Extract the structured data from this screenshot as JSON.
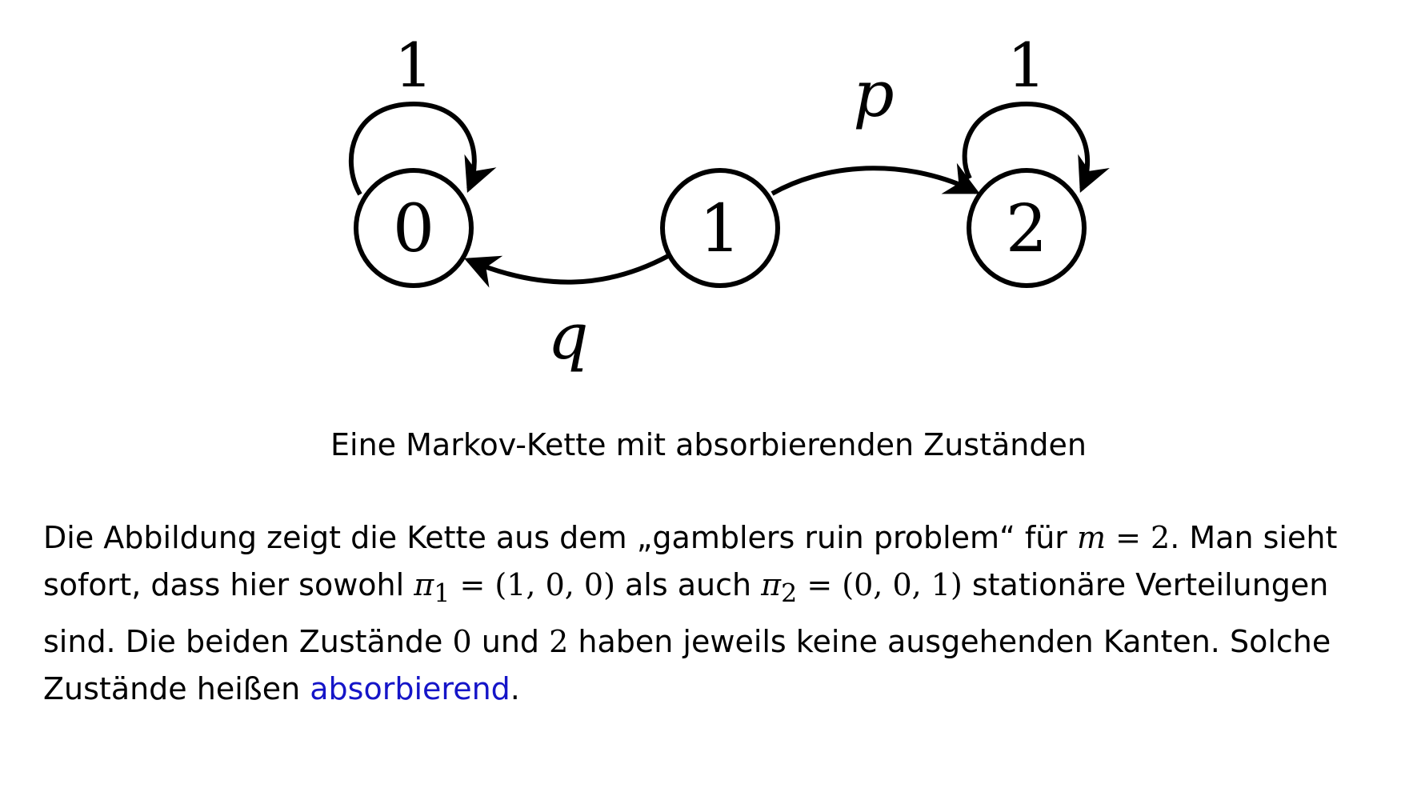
{
  "diagram": {
    "nodes": [
      {
        "id": "0",
        "label": "0"
      },
      {
        "id": "1",
        "label": "1"
      },
      {
        "id": "2",
        "label": "2"
      }
    ],
    "edges": [
      {
        "from": "0",
        "to": "0",
        "label": "1"
      },
      {
        "from": "1",
        "to": "0",
        "label": "q"
      },
      {
        "from": "1",
        "to": "2",
        "label": "p"
      },
      {
        "from": "2",
        "to": "2",
        "label": "1"
      }
    ]
  },
  "caption": "Eine Markov-Kette mit absorbierenden Zuständen",
  "paragraph": {
    "l1_t1": "Die Abbildung zeigt die Kette aus dem „gamblers ruin problem“ für ",
    "l1_m1": "m",
    "l1_m2": " = 2",
    "l1_t2": ". Man sieht",
    "l2_t1": "sofort, dass hier sowohl ",
    "l2_pi1": "π",
    "l2_sub1": "1",
    "l2_v1": " = (1, 0, 0)",
    "l2_t2": " als auch ",
    "l2_pi2": "π",
    "l2_sub2": "2",
    "l2_v2": " = (0, 0, 1)",
    "l2_t3": " stationäre Verteilungen",
    "l3_t1": "sind. Die beiden Zustände ",
    "l3_m1": "0",
    "l3_t2": " und ",
    "l3_m2": "2",
    "l3_t3": " haben jeweils keine ausgehenden Kanten. Solche",
    "l4_t1": "Zustände heißen ",
    "l4_link": "absorbierend",
    "l4_t2": "."
  }
}
